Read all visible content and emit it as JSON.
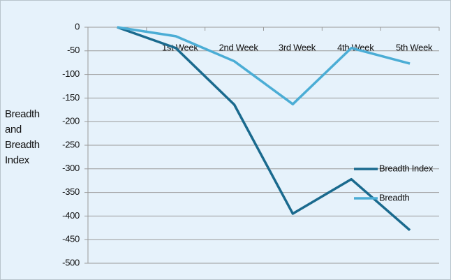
{
  "chart_data": {
    "type": "line",
    "y_label": "Breadth and Breadth Index",
    "categories": [
      null,
      "1st Week",
      "2nd Week",
      "3rd Week",
      "4th Week",
      "5th Week"
    ],
    "series": [
      {
        "name": "Breadth Index",
        "color": "#1a6a8e",
        "values": [
          0,
          -44,
          -164,
          -395,
          -322,
          -430
        ]
      },
      {
        "name": "Breadth",
        "color": "#4badd5",
        "values": [
          0,
          -19,
          -72,
          -163,
          -44,
          -77
        ]
      }
    ],
    "ylim": [
      -500,
      0
    ],
    "yticks": [
      0,
      -50,
      -100,
      -150,
      -200,
      -250,
      -300,
      -350,
      -400,
      -450,
      -500
    ],
    "grid": true,
    "legend": "right"
  }
}
